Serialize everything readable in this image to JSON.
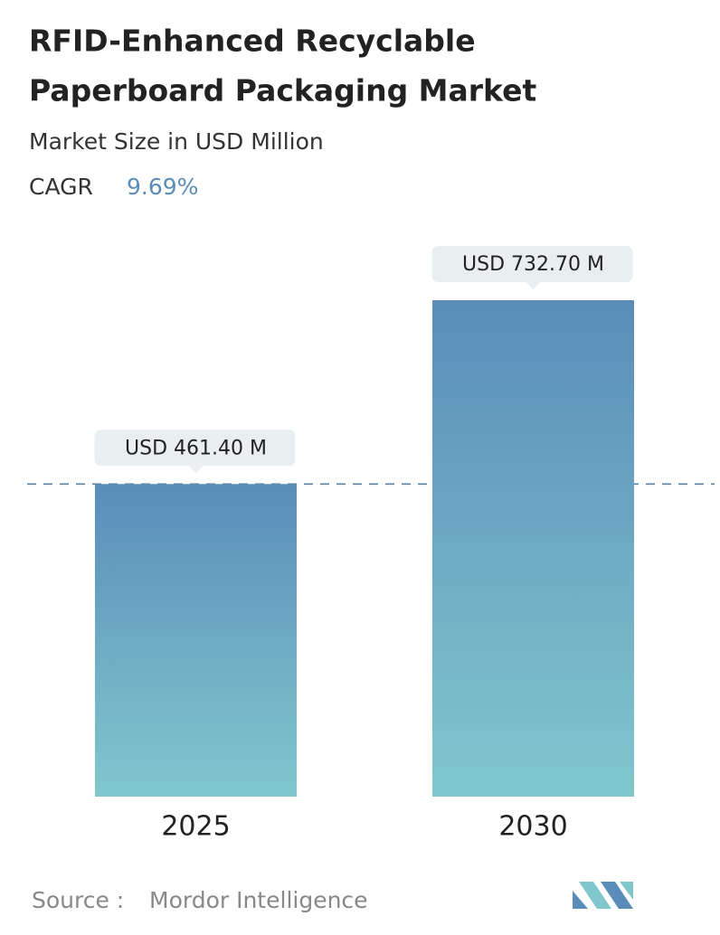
{
  "chart_data": {
    "type": "bar",
    "title": [
      "RFID-Enhanced Recyclable",
      "Paperboard Packaging Market"
    ],
    "subtitle": "Market Size in USD Million",
    "cagr_label": "CAGR",
    "cagr": "9.69%",
    "categories": [
      "2025",
      "2030"
    ],
    "values": [
      461.4,
      732.7
    ],
    "value_labels": [
      "USD 461.40 M",
      "USD 732.70 M"
    ],
    "colors": [
      "#5a8db9",
      "#80c7cd"
    ],
    "source_label": "Source :",
    "source": "Mordor Intelligence"
  }
}
